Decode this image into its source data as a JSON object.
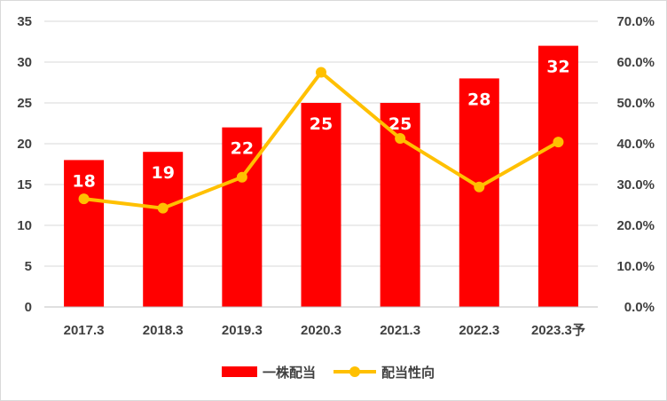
{
  "chart_data": {
    "type": "bar+line",
    "categories": [
      "2017.3",
      "2018.3",
      "2019.3",
      "2020.3",
      "2021.3",
      "2022.3",
      "2023.3予"
    ],
    "series": [
      {
        "name": "一株配当",
        "type": "bar",
        "axis": "left",
        "values": [
          18,
          19,
          22,
          25,
          25,
          28,
          32
        ],
        "color": "#ff0000"
      },
      {
        "name": "配当性向",
        "type": "line",
        "axis": "right",
        "values": [
          0.265,
          0.242,
          0.318,
          0.575,
          0.413,
          0.294,
          0.404
        ],
        "color": "#ffc000"
      }
    ],
    "y_left": {
      "min": 0,
      "max": 35,
      "step": 5,
      "ticks": [
        "0",
        "5",
        "10",
        "15",
        "20",
        "25",
        "30",
        "35"
      ]
    },
    "y_right": {
      "min": 0,
      "max": 0.7,
      "step": 0.1,
      "ticks": [
        "0.0%",
        "10.0%",
        "20.0%",
        "30.0%",
        "40.0%",
        "50.0%",
        "60.0%",
        "70.0%"
      ]
    },
    "data_labels": [
      "18",
      "19",
      "22",
      "25",
      "25",
      "28",
      "32"
    ],
    "grid": true,
    "legend_position": "bottom"
  }
}
